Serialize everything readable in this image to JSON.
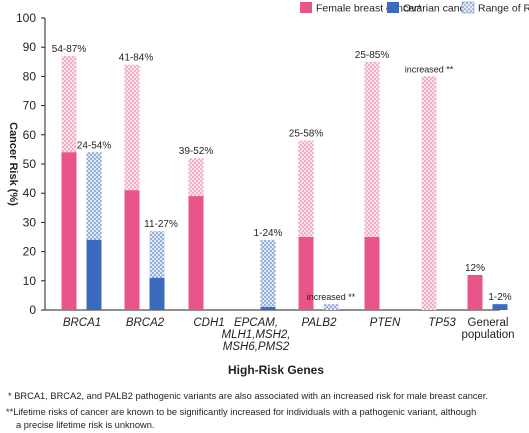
{
  "chart_data": {
    "type": "bar",
    "xlabel": "High-Risk Genes",
    "ylabel": "Cancer Risk (%)",
    "ylim": [
      0,
      100
    ],
    "yticks": [
      0,
      10,
      20,
      30,
      40,
      50,
      60,
      70,
      80,
      90,
      100
    ],
    "grid": false,
    "legend_position": "top-right",
    "legend": [
      {
        "label": "Female breast cancer*",
        "kind": "solid",
        "color": "#e8558a"
      },
      {
        "label": "Ovarian cancer",
        "kind": "solid",
        "color": "#3b6bbd"
      },
      {
        "label": "Range of Reported Risk",
        "kind": "pattern",
        "color": "#9fb6de"
      }
    ],
    "categories": [
      {
        "label": [
          "BRCA1"
        ],
        "italic": true
      },
      {
        "label": [
          "BRCA2"
        ],
        "italic": true
      },
      {
        "label": [
          "CDH1"
        ],
        "italic": true
      },
      {
        "label": [
          "EPCAM,",
          "MLH1,MSH2,",
          "MSH6,PMS2"
        ],
        "italic": true
      },
      {
        "label": [
          "PALB2"
        ],
        "italic": true
      },
      {
        "label": [
          "PTEN"
        ],
        "italic": true
      },
      {
        "label": [
          "TP53"
        ],
        "italic": true
      },
      {
        "label": [
          "General",
          "population"
        ],
        "italic": false
      }
    ],
    "series": [
      {
        "name": "Female breast cancer*",
        "color": "#e8558a",
        "pattern_color": "#f2b4c4",
        "solid": [
          54,
          41,
          39,
          null,
          25,
          25,
          null,
          12
        ],
        "range_top": [
          87,
          84,
          52,
          null,
          58,
          85,
          80,
          null
        ],
        "labels": [
          "54-87%",
          "41-84%",
          "39-52%",
          null,
          "25-58%",
          "25-85%",
          "increased **",
          "12%"
        ]
      },
      {
        "name": "Ovarian cancer",
        "color": "#3b6bbd",
        "pattern_color": "#9fb6de",
        "solid": [
          24,
          11,
          null,
          1,
          null,
          null,
          null,
          2
        ],
        "range_top": [
          54,
          27,
          null,
          24,
          2,
          null,
          null,
          null
        ],
        "labels": [
          "24-54%",
          "11-27%",
          null,
          "1-24%",
          "increased **",
          null,
          null,
          "1-2%"
        ]
      }
    ]
  },
  "footnotes": {
    "note1": "* BRCA1, BRCA2, and PALB2 pathogenic variants are also associated with an increased risk for male breast cancer.",
    "note2_line1": "**Lifetime risks of cancer are known to be significantly increased for individuals with a pathogenic variant, although",
    "note2_line2": "a precise lifetime risk is unknown."
  }
}
